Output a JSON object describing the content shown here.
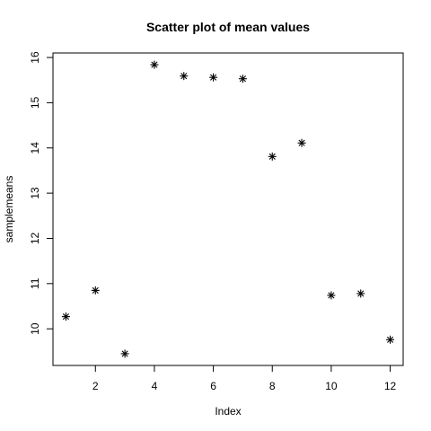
{
  "chart_data": {
    "type": "scatter",
    "title": "Scatter plot of mean values",
    "xlabel": "Index",
    "ylabel": "samplemeans",
    "xlim": [
      0.56,
      12.44
    ],
    "ylim": [
      9.19,
      16.1
    ],
    "xticks": [
      2,
      4,
      6,
      8,
      10,
      12
    ],
    "yticks": [
      10,
      11,
      12,
      13,
      14,
      15,
      16
    ],
    "marker": "asterisk",
    "marker_color": "#000000",
    "grid": false,
    "legend": "none",
    "x": [
      1,
      2,
      3,
      4,
      5,
      6,
      7,
      8,
      9,
      10,
      11,
      12
    ],
    "y": [
      10.27,
      10.85,
      9.45,
      15.84,
      15.59,
      15.56,
      15.53,
      13.81,
      14.11,
      10.74,
      10.78,
      9.76
    ]
  }
}
